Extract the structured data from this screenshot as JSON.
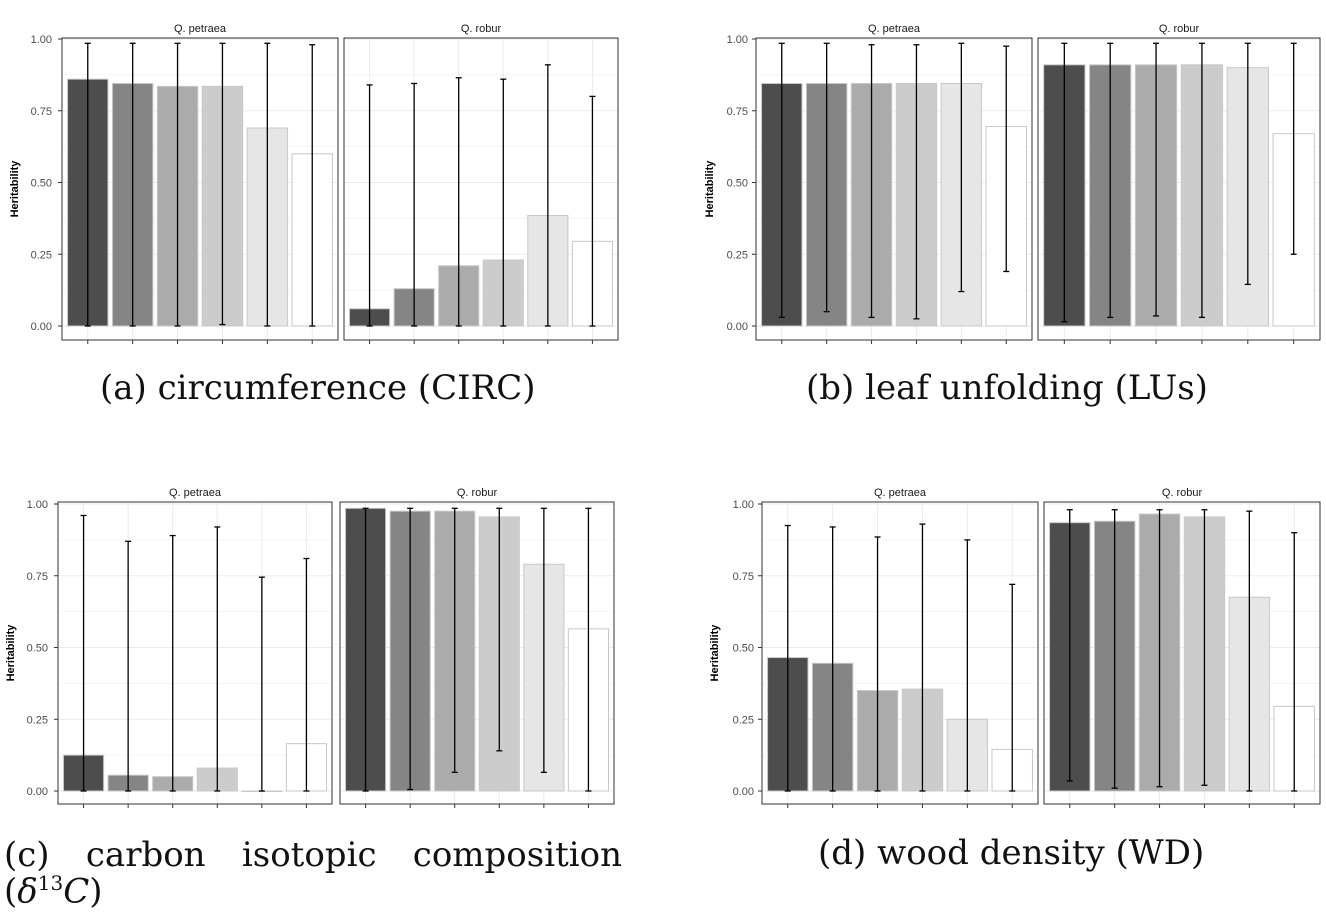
{
  "chart_data": [
    {
      "type": "bar",
      "caption": "(a) circumference (CIRC)",
      "ylabel": "Heritability",
      "yticks": [
        "0.00",
        "0.25",
        "0.50",
        "0.75",
        "1.00"
      ],
      "ylim": [
        0,
        1.05
      ],
      "grid": true,
      "panels": [
        {
          "strip": "Q. petraea",
          "values": [
            0.86,
            0.845,
            0.835,
            0.835,
            0.69,
            0.6
          ],
          "lower": [
            0.0,
            0.0,
            0.0,
            0.005,
            0.0,
            0.0
          ],
          "upper": [
            0.985,
            0.985,
            0.985,
            0.985,
            0.985,
            0.98
          ]
        },
        {
          "strip": "Q. robur",
          "values": [
            0.06,
            0.13,
            0.21,
            0.23,
            0.385,
            0.295
          ],
          "lower": [
            0.0,
            0.0,
            0.0,
            0.0,
            0.0,
            0.0
          ],
          "upper": [
            0.84,
            0.845,
            0.865,
            0.86,
            0.91,
            0.8
          ]
        }
      ]
    },
    {
      "type": "bar",
      "caption": "(b) leaf unfolding (LUs)",
      "ylabel": "Heritability",
      "yticks": [
        "0.00",
        "0.25",
        "0.50",
        "0.75",
        "1.00"
      ],
      "ylim": [
        0,
        1.05
      ],
      "grid": true,
      "panels": [
        {
          "strip": "Q. petraea",
          "values": [
            0.845,
            0.845,
            0.845,
            0.845,
            0.845,
            0.695
          ],
          "lower": [
            0.03,
            0.05,
            0.03,
            0.025,
            0.12,
            0.19
          ],
          "upper": [
            0.985,
            0.985,
            0.98,
            0.98,
            0.985,
            0.975
          ]
        },
        {
          "strip": "Q. robur",
          "values": [
            0.91,
            0.91,
            0.91,
            0.91,
            0.9,
            0.67
          ],
          "lower": [
            0.015,
            0.03,
            0.035,
            0.03,
            0.145,
            0.25
          ],
          "upper": [
            0.985,
            0.985,
            0.985,
            0.985,
            0.985,
            0.985
          ]
        }
      ]
    },
    {
      "type": "bar",
      "caption": "(c) carbon isotopic composition (δ13C)",
      "caption_parts": [
        "(c)",
        "carbon",
        "isotopic",
        "composition"
      ],
      "caption_line2": {
        "open": "(",
        "greek": "δ",
        "sup": "13",
        "var": "C",
        "close": ")"
      },
      "ylabel": "Heritability",
      "yticks": [
        "0.00",
        "0.25",
        "0.50",
        "0.75",
        "1.00"
      ],
      "ylim": [
        0,
        1.05
      ],
      "grid": true,
      "panels": [
        {
          "strip": "Q. petraea",
          "values": [
            0.125,
            0.055,
            0.05,
            0.08,
            0.0,
            0.165
          ],
          "lower": [
            0.0,
            0.0,
            0.0,
            0.0,
            0.0,
            0.0
          ],
          "upper": [
            0.96,
            0.87,
            0.89,
            0.92,
            0.745,
            0.81
          ]
        },
        {
          "strip": "Q. robur",
          "values": [
            0.985,
            0.975,
            0.975,
            0.955,
            0.79,
            0.565
          ],
          "lower": [
            0.0,
            0.005,
            0.065,
            0.14,
            0.065,
            0.0
          ],
          "upper": [
            0.985,
            0.985,
            0.985,
            0.985,
            0.985,
            0.985
          ]
        }
      ]
    },
    {
      "type": "bar",
      "caption": "(d) wood density (WD)",
      "ylabel": "Heritability",
      "yticks": [
        "0.00",
        "0.25",
        "0.50",
        "0.75",
        "1.00"
      ],
      "ylim": [
        0,
        1.05
      ],
      "grid": true,
      "panels": [
        {
          "strip": "Q. petraea",
          "values": [
            0.465,
            0.445,
            0.35,
            0.355,
            0.25,
            0.145
          ],
          "lower": [
            0.0,
            0.0,
            0.0,
            0.0,
            0.0,
            0.0
          ],
          "upper": [
            0.925,
            0.92,
            0.885,
            0.93,
            0.875,
            0.72
          ]
        },
        {
          "strip": "Q. robur",
          "values": [
            0.935,
            0.94,
            0.965,
            0.955,
            0.675,
            0.295
          ],
          "lower": [
            0.035,
            0.01,
            0.015,
            0.02,
            0.0,
            0.0
          ],
          "upper": [
            0.98,
            0.98,
            0.98,
            0.98,
            0.975,
            0.9
          ]
        }
      ]
    }
  ],
  "bar_fills": [
    "#4d4d4d",
    "#858585",
    "#ababab",
    "#cccccc",
    "#e6e6e6",
    "#ffffff"
  ],
  "colors": {
    "panel_border": "#333333",
    "grid": "#ebebeb",
    "bar_outline": "#c8c8c8",
    "errorbar": "#000000"
  }
}
